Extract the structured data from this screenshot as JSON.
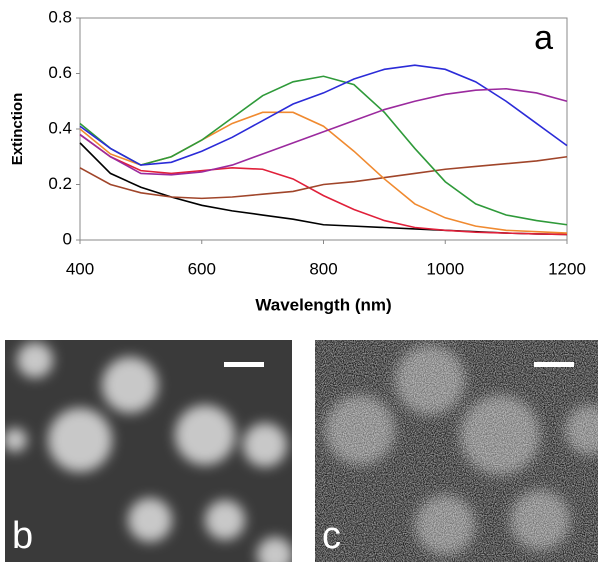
{
  "chart_data": {
    "type": "line",
    "annotation": "a",
    "x_label": "Wavelength (nm)",
    "y_label": "Extinction",
    "x": [
      400,
      450,
      500,
      550,
      600,
      650,
      700,
      750,
      800,
      850,
      900,
      950,
      1000,
      1050,
      1100,
      1150,
      1200
    ],
    "xlim": [
      400,
      1200
    ],
    "xticks": [
      400,
      600,
      800,
      1000,
      1200
    ],
    "ylim": [
      0,
      0.8
    ],
    "yticks": [
      0,
      0.2,
      0.4,
      0.6,
      0.8
    ],
    "series": [
      {
        "color": "#000000",
        "values": [
          0.35,
          0.24,
          0.19,
          0.155,
          0.125,
          0.105,
          0.09,
          0.075,
          0.055,
          0.05,
          0.045,
          0.04,
          0.035,
          0.03,
          0.025,
          0.022,
          0.02
        ]
      },
      {
        "color": "#e0203a",
        "values": [
          0.38,
          0.3,
          0.25,
          0.24,
          0.25,
          0.26,
          0.255,
          0.22,
          0.16,
          0.11,
          0.07,
          0.045,
          0.035,
          0.028,
          0.025,
          0.022,
          0.02
        ]
      },
      {
        "color": "#a0452a",
        "values": [
          0.26,
          0.2,
          0.17,
          0.155,
          0.15,
          0.155,
          0.165,
          0.175,
          0.2,
          0.21,
          0.225,
          0.24,
          0.255,
          0.265,
          0.275,
          0.285,
          0.3
        ]
      },
      {
        "color": "#f08a30",
        "values": [
          0.4,
          0.31,
          0.27,
          0.3,
          0.36,
          0.42,
          0.46,
          0.46,
          0.41,
          0.32,
          0.22,
          0.13,
          0.08,
          0.05,
          0.035,
          0.03,
          0.025
        ]
      },
      {
        "color": "#2f9a3a",
        "values": [
          0.42,
          0.33,
          0.27,
          0.3,
          0.36,
          0.44,
          0.52,
          0.57,
          0.59,
          0.56,
          0.46,
          0.33,
          0.21,
          0.13,
          0.09,
          0.07,
          0.055
        ]
      },
      {
        "color": "#2b2bd8",
        "values": [
          0.41,
          0.33,
          0.27,
          0.28,
          0.32,
          0.37,
          0.43,
          0.49,
          0.53,
          0.58,
          0.615,
          0.63,
          0.615,
          0.57,
          0.5,
          0.42,
          0.34
        ]
      },
      {
        "color": "#9b2a9e",
        "values": [
          0.38,
          0.3,
          0.24,
          0.235,
          0.245,
          0.27,
          0.31,
          0.35,
          0.39,
          0.43,
          0.47,
          0.5,
          0.525,
          0.54,
          0.545,
          0.53,
          0.5
        ]
      }
    ]
  },
  "images": [
    {
      "label": "b"
    },
    {
      "label": "c"
    }
  ]
}
